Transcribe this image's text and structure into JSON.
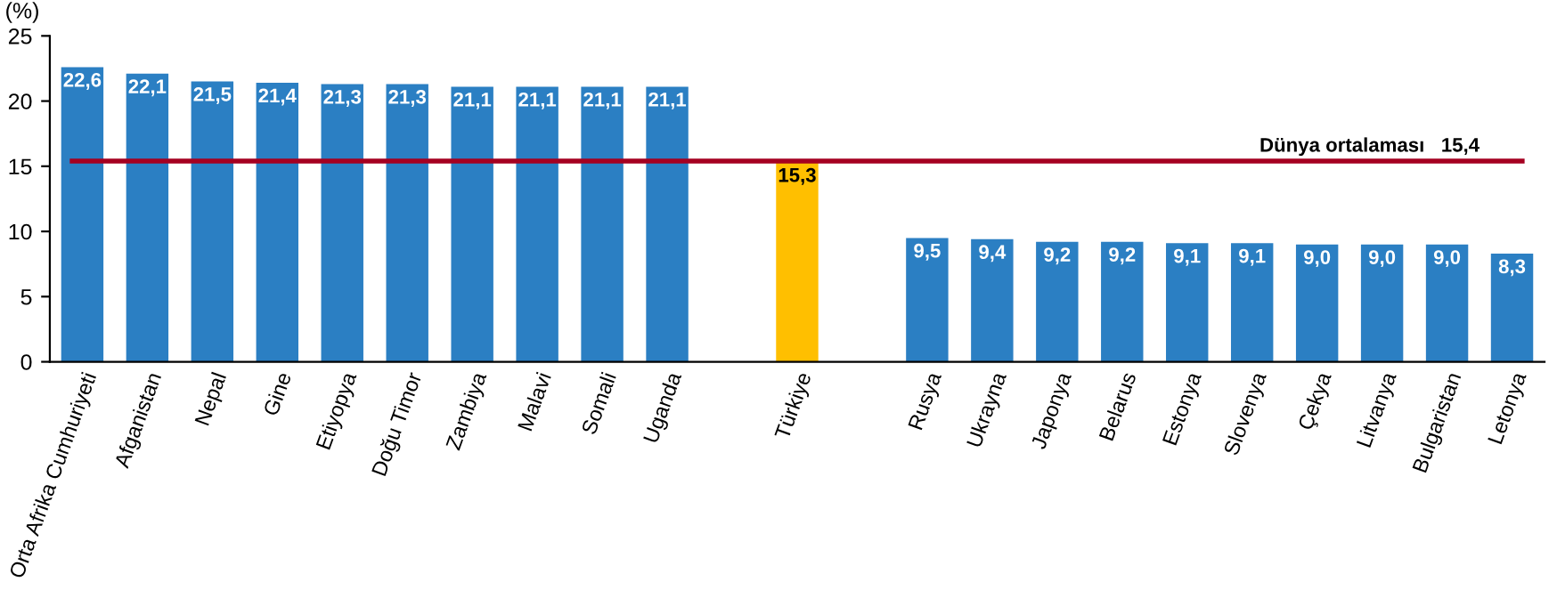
{
  "chart_data": {
    "type": "bar",
    "ylabel": "(%)",
    "categories": [
      "Orta Afrika Cumhuriyeti",
      "Afganistan",
      "Nepal",
      "Gine",
      "Etiyopya",
      "Doğu Timor",
      "Zambiya",
      "Malavi",
      "Somali",
      "Uganda",
      null,
      "Türkiye",
      null,
      "Rusya",
      "Ukrayna",
      "Japonya",
      "Belarus",
      "Estonya",
      "Slovenya",
      "Çekya",
      "Litvanya",
      "Bulgaristan",
      "Letonya"
    ],
    "values": [
      22.6,
      22.1,
      21.5,
      21.4,
      21.3,
      21.3,
      21.1,
      21.1,
      21.1,
      21.1,
      null,
      15.3,
      null,
      9.5,
      9.4,
      9.2,
      9.2,
      9.1,
      9.1,
      9.0,
      9.0,
      9.0,
      8.3
    ],
    "value_labels": [
      "22,6",
      "22,1",
      "21,5",
      "21,4",
      "21,3",
      "21,3",
      "21,1",
      "21,1",
      "21,1",
      "21,1",
      null,
      "15,3",
      null,
      "9,5",
      "9,4",
      "9,2",
      "9,2",
      "9,1",
      "9,1",
      "9,0",
      "9,0",
      "9,0",
      "8,3"
    ],
    "colors": [
      "#2b7fc3",
      "#2b7fc3",
      "#2b7fc3",
      "#2b7fc3",
      "#2b7fc3",
      "#2b7fc3",
      "#2b7fc3",
      "#2b7fc3",
      "#2b7fc3",
      "#2b7fc3",
      null,
      "#ffbf00",
      null,
      "#2b7fc3",
      "#2b7fc3",
      "#2b7fc3",
      "#2b7fc3",
      "#2b7fc3",
      "#2b7fc3",
      "#2b7fc3",
      "#2b7fc3",
      "#2b7fc3",
      "#2b7fc3"
    ],
    "ylim": [
      0,
      25
    ],
    "yticks": [
      0,
      5,
      10,
      15,
      20,
      25
    ],
    "grid": false,
    "legend": false,
    "ref_lines": [
      {
        "axis": "y",
        "value": 15.4,
        "label": "Dünya ortalaması   15,4",
        "color": "#a50021"
      }
    ]
  }
}
